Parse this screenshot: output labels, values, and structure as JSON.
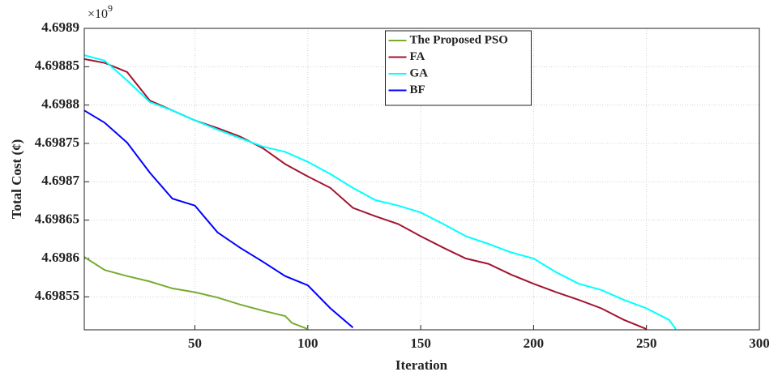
{
  "chart_data": {
    "type": "line",
    "x_label": "Iteration",
    "y_label": "Total Cost (¢)",
    "y_multiplier": {
      "base": "×10",
      "exponent": "9"
    },
    "xlim": [
      1,
      300
    ],
    "xticks": [
      50,
      100,
      150,
      200,
      250,
      300
    ],
    "ylim": [
      4.698507,
      4.6989
    ],
    "yticks": [
      4.69855,
      4.6986,
      4.69865,
      4.6987,
      4.69875,
      4.6988,
      4.69885,
      4.6989
    ],
    "grid": true,
    "legend": "top",
    "series": [
      {
        "name": "The Proposed PSO",
        "color": "#77ac30",
        "x": [
          1,
          10,
          20,
          30,
          40,
          50,
          60,
          70,
          80,
          90,
          93,
          100
        ],
        "values": [
          4.698602,
          4.698585,
          4.698577,
          4.69857,
          4.698561,
          4.698556,
          4.698549,
          4.69854,
          4.698532,
          4.698525,
          4.698516,
          4.698508
        ]
      },
      {
        "name": "FA",
        "color": "#a2142f",
        "x": [
          1,
          10,
          20,
          30,
          40,
          50,
          60,
          70,
          80,
          90,
          100,
          110,
          120,
          130,
          140,
          150,
          160,
          170,
          180,
          190,
          200,
          210,
          220,
          230,
          240,
          250
        ],
        "values": [
          4.69886,
          4.698855,
          4.698843,
          4.698806,
          4.698793,
          4.69878,
          4.69877,
          4.698759,
          4.698744,
          4.698723,
          4.698707,
          4.698692,
          4.698666,
          4.698655,
          4.698645,
          4.698629,
          4.698614,
          4.6986,
          4.698593,
          4.698579,
          4.698567,
          4.698556,
          4.698546,
          4.698535,
          4.69852,
          4.698508
        ]
      },
      {
        "name": "GA",
        "color": "#00ffff",
        "x": [
          1,
          10,
          20,
          30,
          40,
          50,
          60,
          70,
          80,
          90,
          100,
          110,
          120,
          130,
          140,
          150,
          160,
          170,
          180,
          190,
          200,
          210,
          220,
          230,
          240,
          250,
          260,
          263
        ],
        "values": [
          4.698865,
          4.698858,
          4.698832,
          4.698804,
          4.698793,
          4.69878,
          4.698768,
          4.698757,
          4.698746,
          4.698739,
          4.698726,
          4.69871,
          4.698692,
          4.698676,
          4.698669,
          4.69866,
          4.698645,
          4.698629,
          4.698619,
          4.698608,
          4.6986,
          4.698582,
          4.698567,
          4.698559,
          4.698546,
          4.698535,
          4.69852,
          4.698508
        ]
      },
      {
        "name": "BF",
        "color": "#0000ff",
        "x": [
          1,
          10,
          20,
          30,
          40,
          50,
          60,
          70,
          80,
          90,
          100,
          110,
          120
        ],
        "values": [
          4.698793,
          4.698777,
          4.698751,
          4.698712,
          4.698678,
          4.698669,
          4.698634,
          4.698614,
          4.698596,
          4.698577,
          4.698565,
          4.698535,
          4.69851
        ]
      }
    ]
  }
}
